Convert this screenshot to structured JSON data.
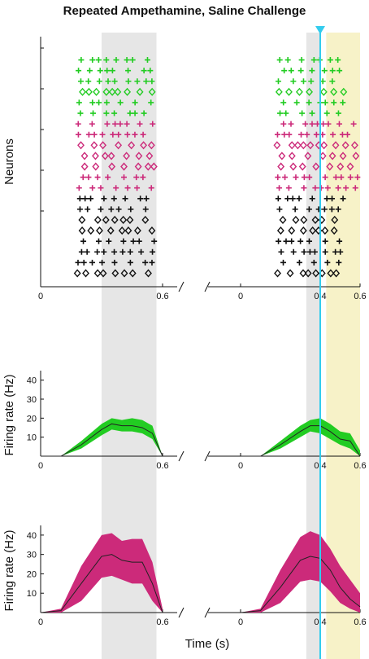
{
  "chart_data": {
    "title": "Repeated Ampethamine, Saline Challenge",
    "xlabel": "Time (s)",
    "colors": {
      "green": "#22cc22",
      "magenta": "#cc2a7a",
      "black": "#111111",
      "cyan": "#33ccee",
      "gray_band": "#e6e6e6",
      "yellow_band": "#f7f2c8"
    },
    "panels": [
      {
        "type": "raster",
        "ylabel": "Neurons",
        "xticks_left": [
          "0",
          "0.6"
        ],
        "xticks_right": [
          "0",
          "0.4",
          "0.6"
        ],
        "groups": [
          {
            "color": "green",
            "marker": "+",
            "rows": 3
          },
          {
            "color": "green",
            "marker": "diamond",
            "rows": 1
          },
          {
            "color": "green",
            "marker": "+",
            "rows": 2
          },
          {
            "color": "magenta",
            "marker": "+",
            "rows": 2
          },
          {
            "color": "magenta",
            "marker": "diamond",
            "rows": 3
          },
          {
            "color": "magenta",
            "marker": "+",
            "rows": 2
          },
          {
            "color": "black",
            "marker": "+",
            "rows": 2
          },
          {
            "color": "black",
            "marker": "diamond",
            "rows": 2
          },
          {
            "color": "black",
            "marker": "+",
            "rows": 3
          },
          {
            "color": "black",
            "marker": "diamond",
            "rows": 1
          }
        ]
      },
      {
        "type": "area",
        "ylabel": "Firing rate (Hz)",
        "color": "green",
        "ylim": [
          0,
          45
        ],
        "yticks": [
          "10",
          "20",
          "30",
          "40"
        ],
        "xticks_left": [
          "0",
          "0.6"
        ],
        "xticks_right": [
          "0",
          "0.4",
          "0.6"
        ],
        "left": {
          "x": [
            0,
            0.1,
            0.2,
            0.3,
            0.35,
            0.4,
            0.45,
            0.5,
            0.55,
            0.6
          ],
          "mean": [
            0,
            0,
            6,
            14,
            17,
            16,
            16,
            15,
            12,
            0
          ],
          "upper": [
            0,
            0,
            8,
            17,
            20,
            19,
            20,
            19,
            16,
            0
          ],
          "lower": [
            0,
            0,
            4,
            11,
            14,
            13,
            13,
            12,
            9,
            0
          ]
        },
        "right": {
          "x": [
            0,
            0.1,
            0.2,
            0.3,
            0.35,
            0.4,
            0.45,
            0.5,
            0.55,
            0.6
          ],
          "mean": [
            0,
            0,
            6,
            13,
            16,
            16,
            13,
            9,
            8,
            0
          ],
          "upper": [
            0,
            0,
            8,
            16,
            19,
            20,
            17,
            13,
            12,
            3
          ],
          "lower": [
            0,
            0,
            4,
            10,
            13,
            12,
            9,
            6,
            4,
            0
          ]
        }
      },
      {
        "type": "area",
        "ylabel": "Firing rate (Hz)",
        "color": "magenta",
        "ylim": [
          0,
          45
        ],
        "yticks": [
          "10",
          "20",
          "30",
          "40"
        ],
        "xticks_left": [
          "0",
          "0.6"
        ],
        "xticks_right": [
          "0",
          "0.4",
          "0.6"
        ],
        "left": {
          "x": [
            0,
            0.1,
            0.2,
            0.3,
            0.35,
            0.4,
            0.45,
            0.5,
            0.55,
            0.6
          ],
          "mean": [
            0,
            1,
            15,
            29,
            30,
            27,
            26,
            26,
            15,
            0
          ],
          "upper": [
            0,
            2,
            24,
            40,
            41,
            37,
            38,
            38,
            26,
            2
          ],
          "lower": [
            0,
            0,
            6,
            18,
            19,
            17,
            15,
            15,
            6,
            0
          ]
        },
        "right": {
          "x": [
            0,
            0.1,
            0.2,
            0.3,
            0.35,
            0.4,
            0.45,
            0.5,
            0.55,
            0.6
          ],
          "mean": [
            0,
            1,
            13,
            27,
            29,
            28,
            22,
            13,
            7,
            3
          ],
          "upper": [
            0,
            2,
            22,
            39,
            42,
            40,
            33,
            24,
            17,
            10
          ],
          "lower": [
            0,
            0,
            5,
            16,
            17,
            16,
            11,
            5,
            2,
            0
          ]
        }
      }
    ],
    "shaded_regions": {
      "left_gray": [
        0.3,
        0.57
      ],
      "right_gray": [
        0.33,
        0.4
      ],
      "right_yellow": [
        0.43,
        0.6
      ],
      "cyan_line_x": 0.4
    }
  }
}
